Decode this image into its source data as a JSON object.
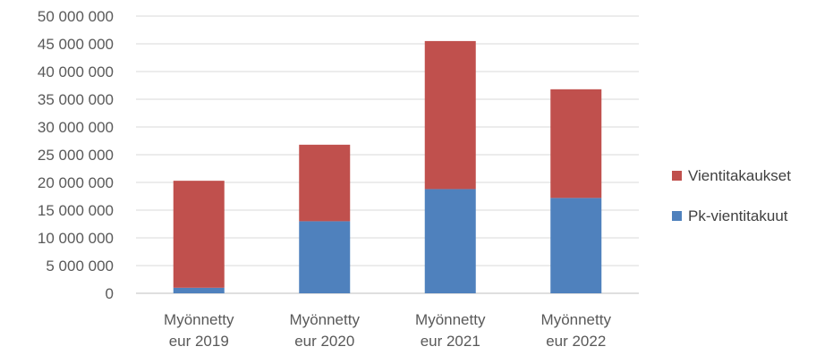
{
  "chart_data": {
    "type": "bar",
    "stacked": true,
    "categories": [
      [
        "Myönnetty",
        "eur 2019"
      ],
      [
        "Myönnetty",
        "eur 2020"
      ],
      [
        "Myönnetty",
        "eur 2021"
      ],
      [
        "Myönnetty",
        "eur 2022"
      ]
    ],
    "series": [
      {
        "name": "Pk-vientitakuut",
        "color": "#4f81bd",
        "values": [
          1000000,
          13000000,
          18800000,
          17200000
        ]
      },
      {
        "name": "Vientitakaukset",
        "color": "#c0504d",
        "values": [
          19300000,
          13800000,
          26700000,
          19600000
        ]
      }
    ],
    "ylim": [
      0,
      50000000
    ],
    "yticks": [
      "0",
      "5 000 000",
      "10 000 000",
      "15 000 000",
      "20 000 000",
      "25 000 000",
      "30 000 000",
      "35 000 000",
      "40 000 000",
      "45 000 000",
      "50 000 000"
    ],
    "grid": true,
    "legend": "right",
    "title": "",
    "xlabel": "",
    "ylabel": ""
  }
}
